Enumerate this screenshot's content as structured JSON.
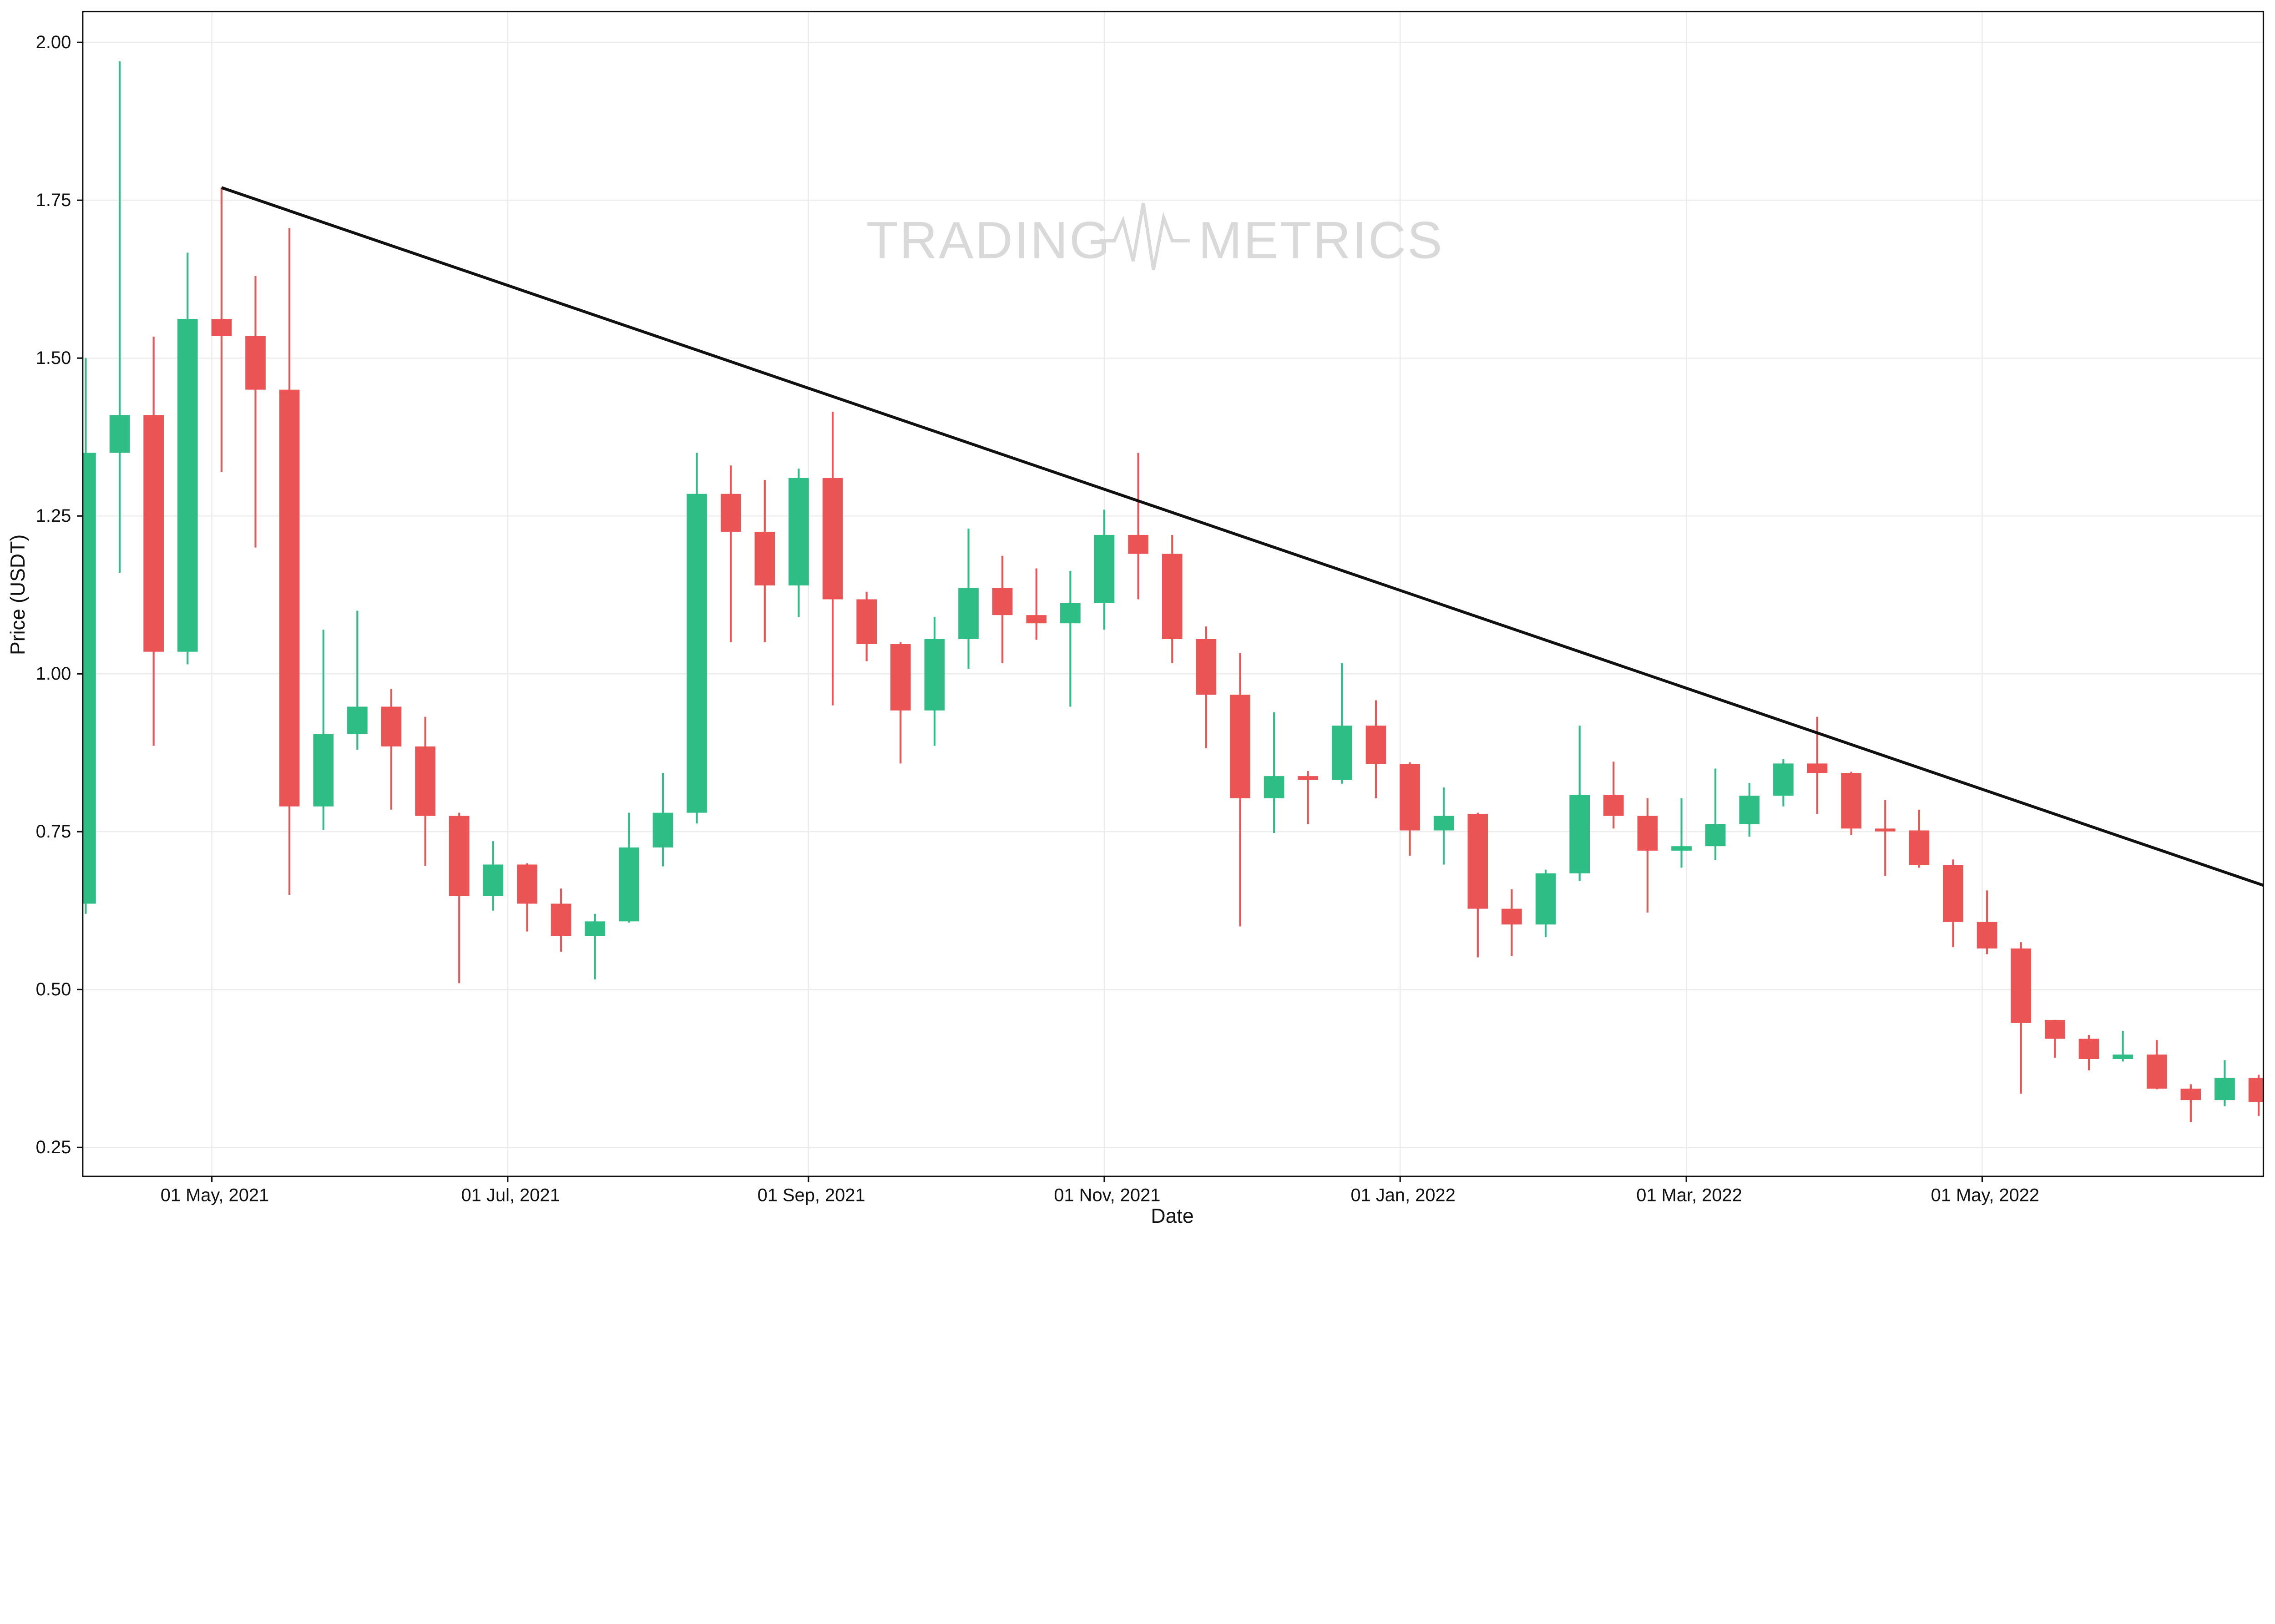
{
  "chart_data": {
    "type": "candlestick",
    "title": "",
    "xlabel": "Date",
    "ylabel": "Price (USDT)",
    "watermark": "TRADING METRICS",
    "watermark_left": "TRADING",
    "watermark_right": "METRICS",
    "ylim": [
      0.22,
      2.05
    ],
    "xlim": [
      "2021-04-04",
      "2022-06-29"
    ],
    "grid": true,
    "y_ticks": [
      {
        "v": 0.25,
        "label": "0.25"
      },
      {
        "v": 0.5,
        "label": "0.50"
      },
      {
        "v": 0.75,
        "label": "0.75"
      },
      {
        "v": 1.0,
        "label": "1.00"
      },
      {
        "v": 1.25,
        "label": "1.25"
      },
      {
        "v": 1.5,
        "label": "1.50"
      },
      {
        "v": 1.75,
        "label": "1.75"
      },
      {
        "v": 2.0,
        "label": "2.00"
      }
    ],
    "x_ticks": [
      {
        "d": "2021-05-01",
        "label": "01 May, 2021"
      },
      {
        "d": "2021-07-01",
        "label": "01 Jul, 2021"
      },
      {
        "d": "2021-09-01",
        "label": "01 Sep, 2021"
      },
      {
        "d": "2021-11-01",
        "label": "01 Nov, 2021"
      },
      {
        "d": "2022-01-01",
        "label": "01 Jan, 2022"
      },
      {
        "d": "2022-03-01",
        "label": "01 Mar, 2022"
      },
      {
        "d": "2022-05-01",
        "label": "01 May, 2022"
      }
    ],
    "colors": {
      "up": "#2ebd85",
      "down": "#ea5455",
      "trend": "#111111"
    },
    "trendline": {
      "start": {
        "date": "2021-05-03",
        "value": 1.77
      },
      "end": {
        "date": "2022-06-29",
        "value": 0.665
      }
    },
    "start_date": "2021-04-05",
    "interval_days": 7,
    "ohlc": [
      [
        0.636,
        1.5,
        0.62,
        1.35
      ],
      [
        1.35,
        1.97,
        1.16,
        1.41
      ],
      [
        1.41,
        1.534,
        0.886,
        1.035
      ],
      [
        1.035,
        1.667,
        1.015,
        1.562
      ],
      [
        1.562,
        1.77,
        1.32,
        1.535
      ],
      [
        1.535,
        1.63,
        1.2,
        1.45
      ],
      [
        1.45,
        1.706,
        0.65,
        0.79
      ],
      [
        0.79,
        1.07,
        0.753,
        0.905
      ],
      [
        0.905,
        1.1,
        0.88,
        0.948
      ],
      [
        0.948,
        0.976,
        0.785,
        0.885
      ],
      [
        0.885,
        0.932,
        0.696,
        0.775
      ],
      [
        0.775,
        0.78,
        0.51,
        0.648
      ],
      [
        0.648,
        0.735,
        0.625,
        0.698
      ],
      [
        0.698,
        0.7,
        0.592,
        0.636
      ],
      [
        0.636,
        0.66,
        0.56,
        0.585
      ],
      [
        0.585,
        0.62,
        0.516,
        0.608
      ],
      [
        0.608,
        0.78,
        0.606,
        0.725
      ],
      [
        0.725,
        0.843,
        0.695,
        0.78
      ],
      [
        0.78,
        1.35,
        0.763,
        1.285
      ],
      [
        1.285,
        1.33,
        1.05,
        1.225
      ],
      [
        1.225,
        1.307,
        1.05,
        1.14
      ],
      [
        1.14,
        1.325,
        1.09,
        1.31
      ],
      [
        1.31,
        1.415,
        0.95,
        1.118
      ],
      [
        1.118,
        1.13,
        1.02,
        1.047
      ],
      [
        1.047,
        1.05,
        0.858,
        0.942
      ],
      [
        0.942,
        1.09,
        0.886,
        1.055
      ],
      [
        1.055,
        1.23,
        1.008,
        1.136
      ],
      [
        1.136,
        1.187,
        1.017,
        1.093
      ],
      [
        1.093,
        1.167,
        1.054,
        1.08
      ],
      [
        1.08,
        1.163,
        0.948,
        1.112
      ],
      [
        1.112,
        1.26,
        1.07,
        1.22
      ],
      [
        1.22,
        1.35,
        1.118,
        1.19
      ],
      [
        1.19,
        1.22,
        1.017,
        1.055
      ],
      [
        1.055,
        1.075,
        0.882,
        0.967
      ],
      [
        0.967,
        1.033,
        0.6,
        0.803
      ],
      [
        0.803,
        0.939,
        0.748,
        0.838
      ],
      [
        0.838,
        0.846,
        0.762,
        0.832
      ],
      [
        0.832,
        1.017,
        0.826,
        0.918
      ],
      [
        0.918,
        0.958,
        0.803,
        0.857
      ],
      [
        0.857,
        0.86,
        0.712,
        0.752
      ],
      [
        0.752,
        0.82,
        0.698,
        0.775
      ],
      [
        0.778,
        0.78,
        0.551,
        0.628
      ],
      [
        0.628,
        0.659,
        0.553,
        0.603
      ],
      [
        0.603,
        0.69,
        0.583,
        0.684
      ],
      [
        0.684,
        0.918,
        0.672,
        0.808
      ],
      [
        0.808,
        0.861,
        0.755,
        0.775
      ],
      [
        0.775,
        0.803,
        0.622,
        0.72
      ],
      [
        0.72,
        0.803,
        0.693,
        0.727
      ],
      [
        0.727,
        0.85,
        0.705,
        0.762
      ],
      [
        0.762,
        0.827,
        0.742,
        0.807
      ],
      [
        0.807,
        0.865,
        0.79,
        0.858
      ],
      [
        0.858,
        0.932,
        0.778,
        0.843
      ],
      [
        0.843,
        0.845,
        0.745,
        0.755
      ],
      [
        0.755,
        0.8,
        0.68,
        0.752
      ],
      [
        0.752,
        0.785,
        0.693,
        0.697
      ],
      [
        0.697,
        0.706,
        0.567,
        0.607
      ],
      [
        0.607,
        0.657,
        0.556,
        0.565
      ],
      [
        0.565,
        0.575,
        0.335,
        0.447
      ],
      [
        0.452,
        0.452,
        0.392,
        0.422
      ],
      [
        0.422,
        0.428,
        0.372,
        0.39
      ],
      [
        0.39,
        0.434,
        0.386,
        0.397
      ],
      [
        0.397,
        0.42,
        0.342,
        0.343
      ],
      [
        0.343,
        0.35,
        0.29,
        0.325
      ],
      [
        0.325,
        0.388,
        0.315,
        0.36
      ],
      [
        0.36,
        0.365,
        0.3,
        0.322
      ]
    ]
  }
}
